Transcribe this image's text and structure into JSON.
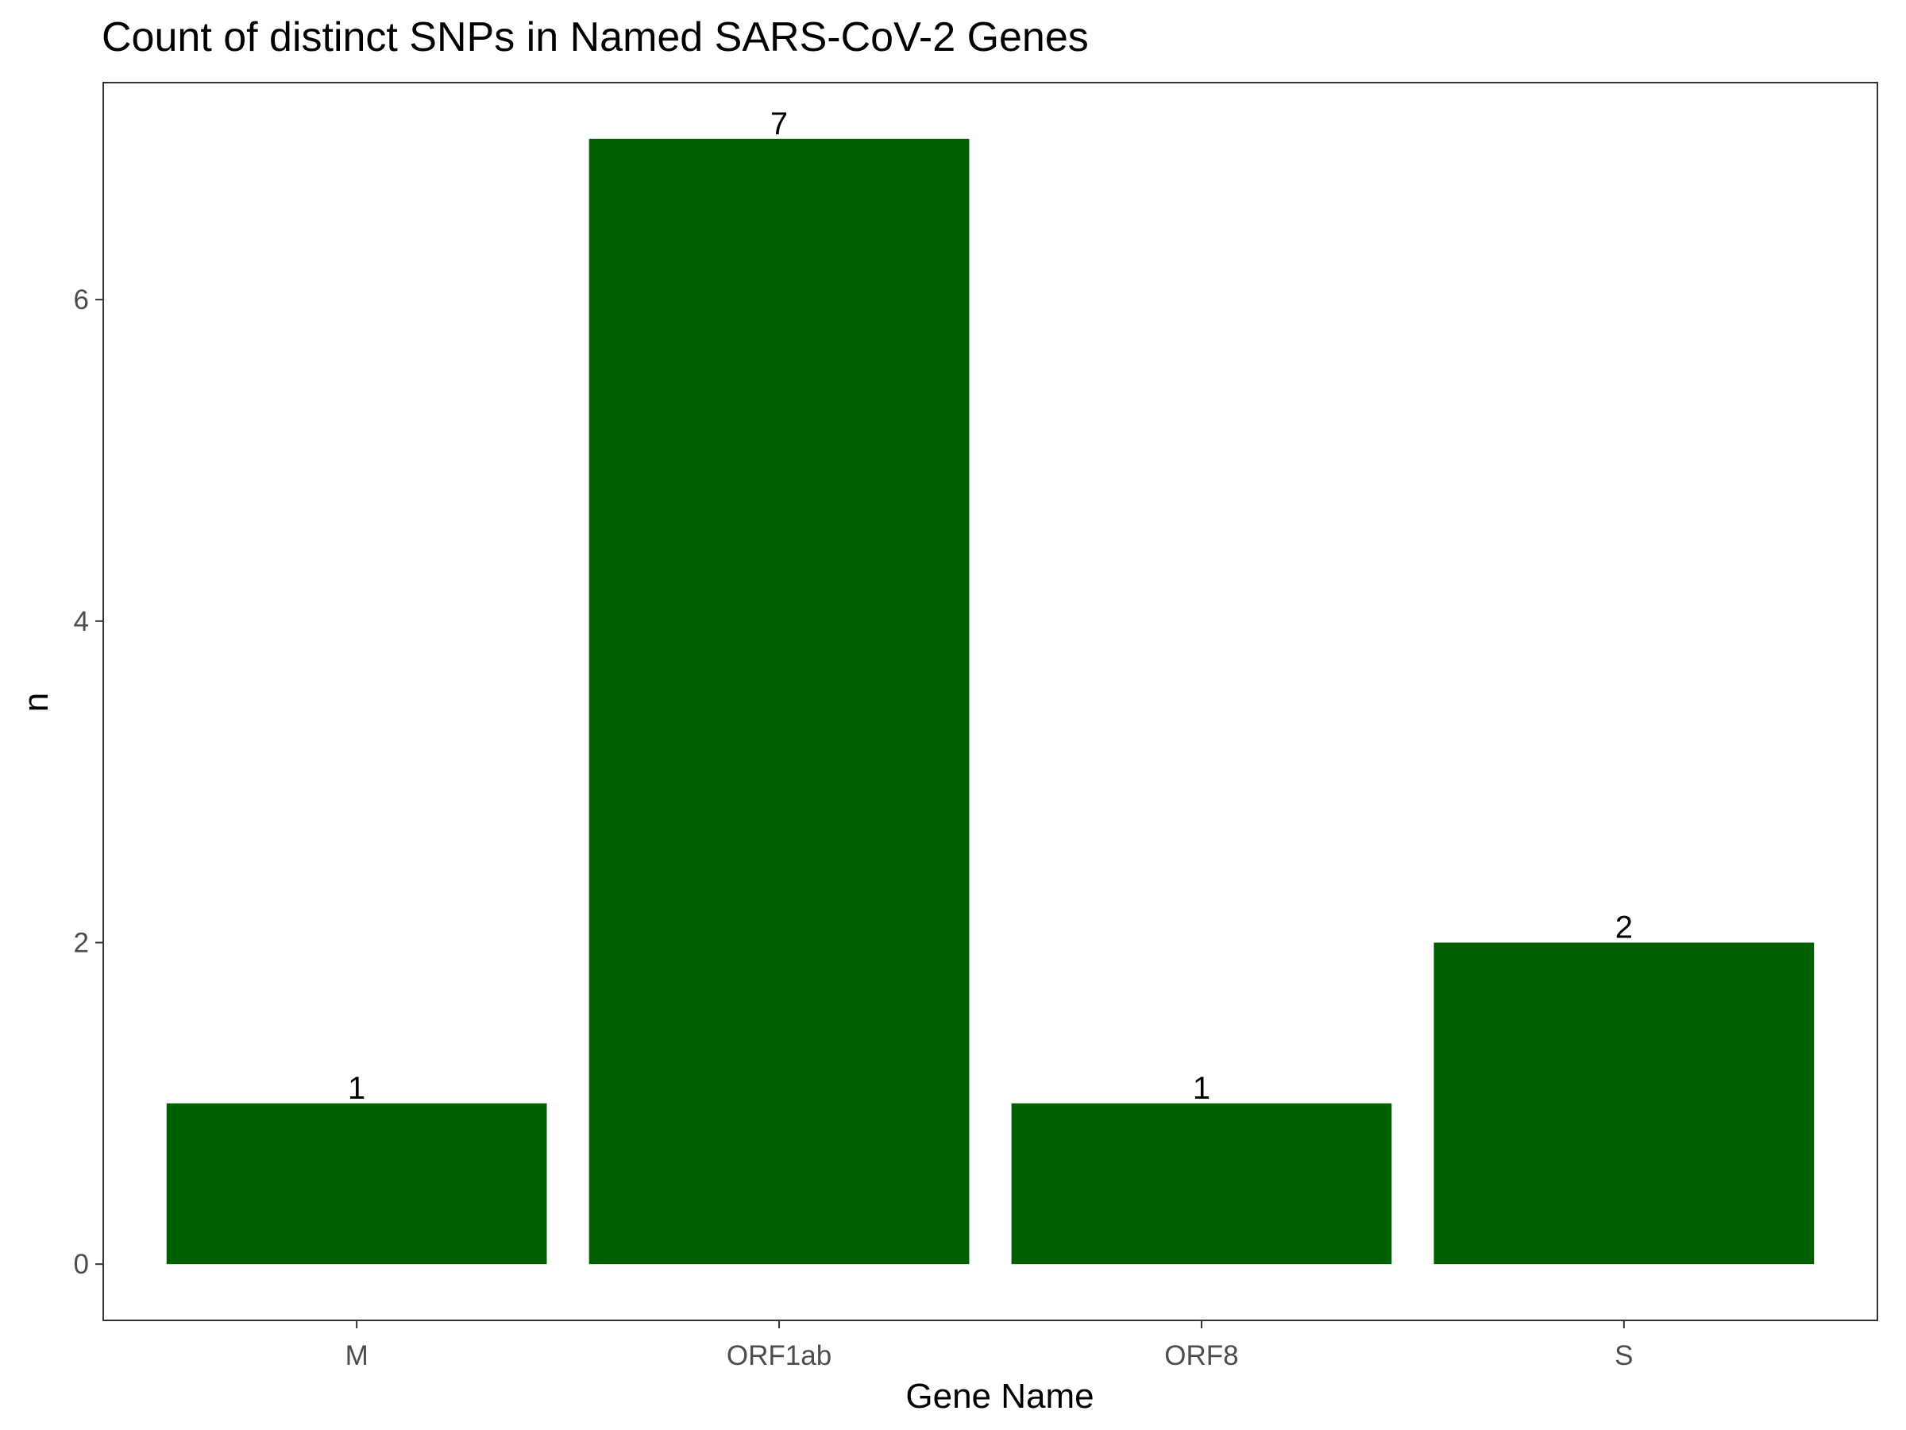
{
  "chart_data": {
    "type": "bar",
    "title": "Count of distinct SNPs in Named SARS-CoV-2 Genes",
    "xlabel": "Gene Name",
    "ylabel": "n",
    "categories": [
      "M",
      "ORF1ab",
      "ORF8",
      "S"
    ],
    "values": [
      1,
      7,
      1,
      2
    ],
    "data_labels": [
      "1",
      "7",
      "1",
      "2"
    ],
    "yticks": [
      0,
      2,
      4,
      6
    ],
    "ytick_labels": [
      "0",
      "2",
      "4",
      "6"
    ],
    "ylim": [
      -0.35,
      7.35
    ],
    "grid": false,
    "legend": "none",
    "bar_color": "#006000"
  }
}
